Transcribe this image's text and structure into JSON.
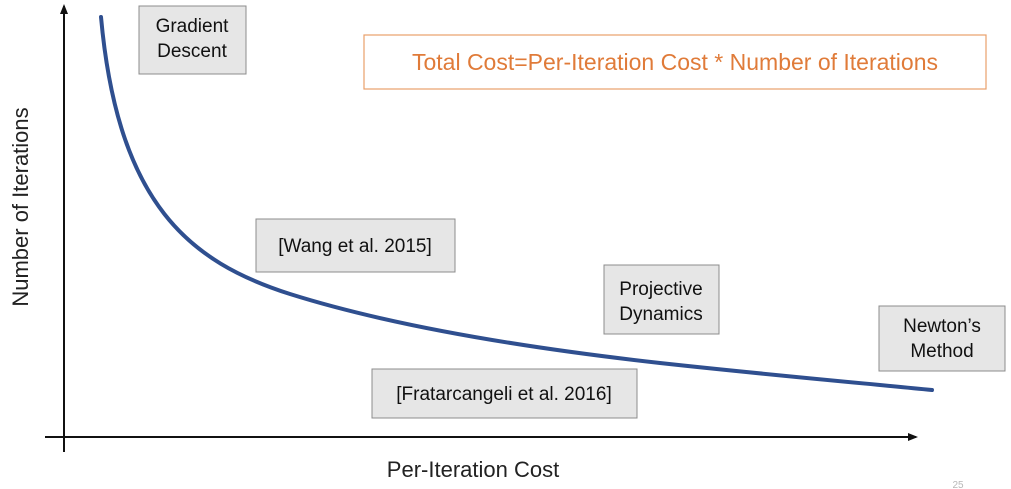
{
  "axes": {
    "x_label": "Per-Iteration Cost",
    "y_label": "Number of Iterations"
  },
  "formula": "Total Cost=Per-Iteration Cost * Number of Iterations",
  "methods": [
    {
      "lines": [
        "Gradient",
        "Descent"
      ]
    },
    {
      "lines": [
        "[Wang et al. 2015]"
      ]
    },
    {
      "lines": [
        "Projective",
        "Dynamics"
      ]
    },
    {
      "lines": [
        "Newton’s",
        "Method"
      ]
    },
    {
      "lines": [
        "[Fratarcangeli et al. 2016]"
      ]
    }
  ],
  "page_number": "25",
  "colors": {
    "curve": "#2f4f8f",
    "formula_text": "#e07b39",
    "formula_border": "#e8a06a",
    "box_fill": "#e6e6e6",
    "box_border": "#8c8c8c",
    "axis": "#111111"
  }
}
